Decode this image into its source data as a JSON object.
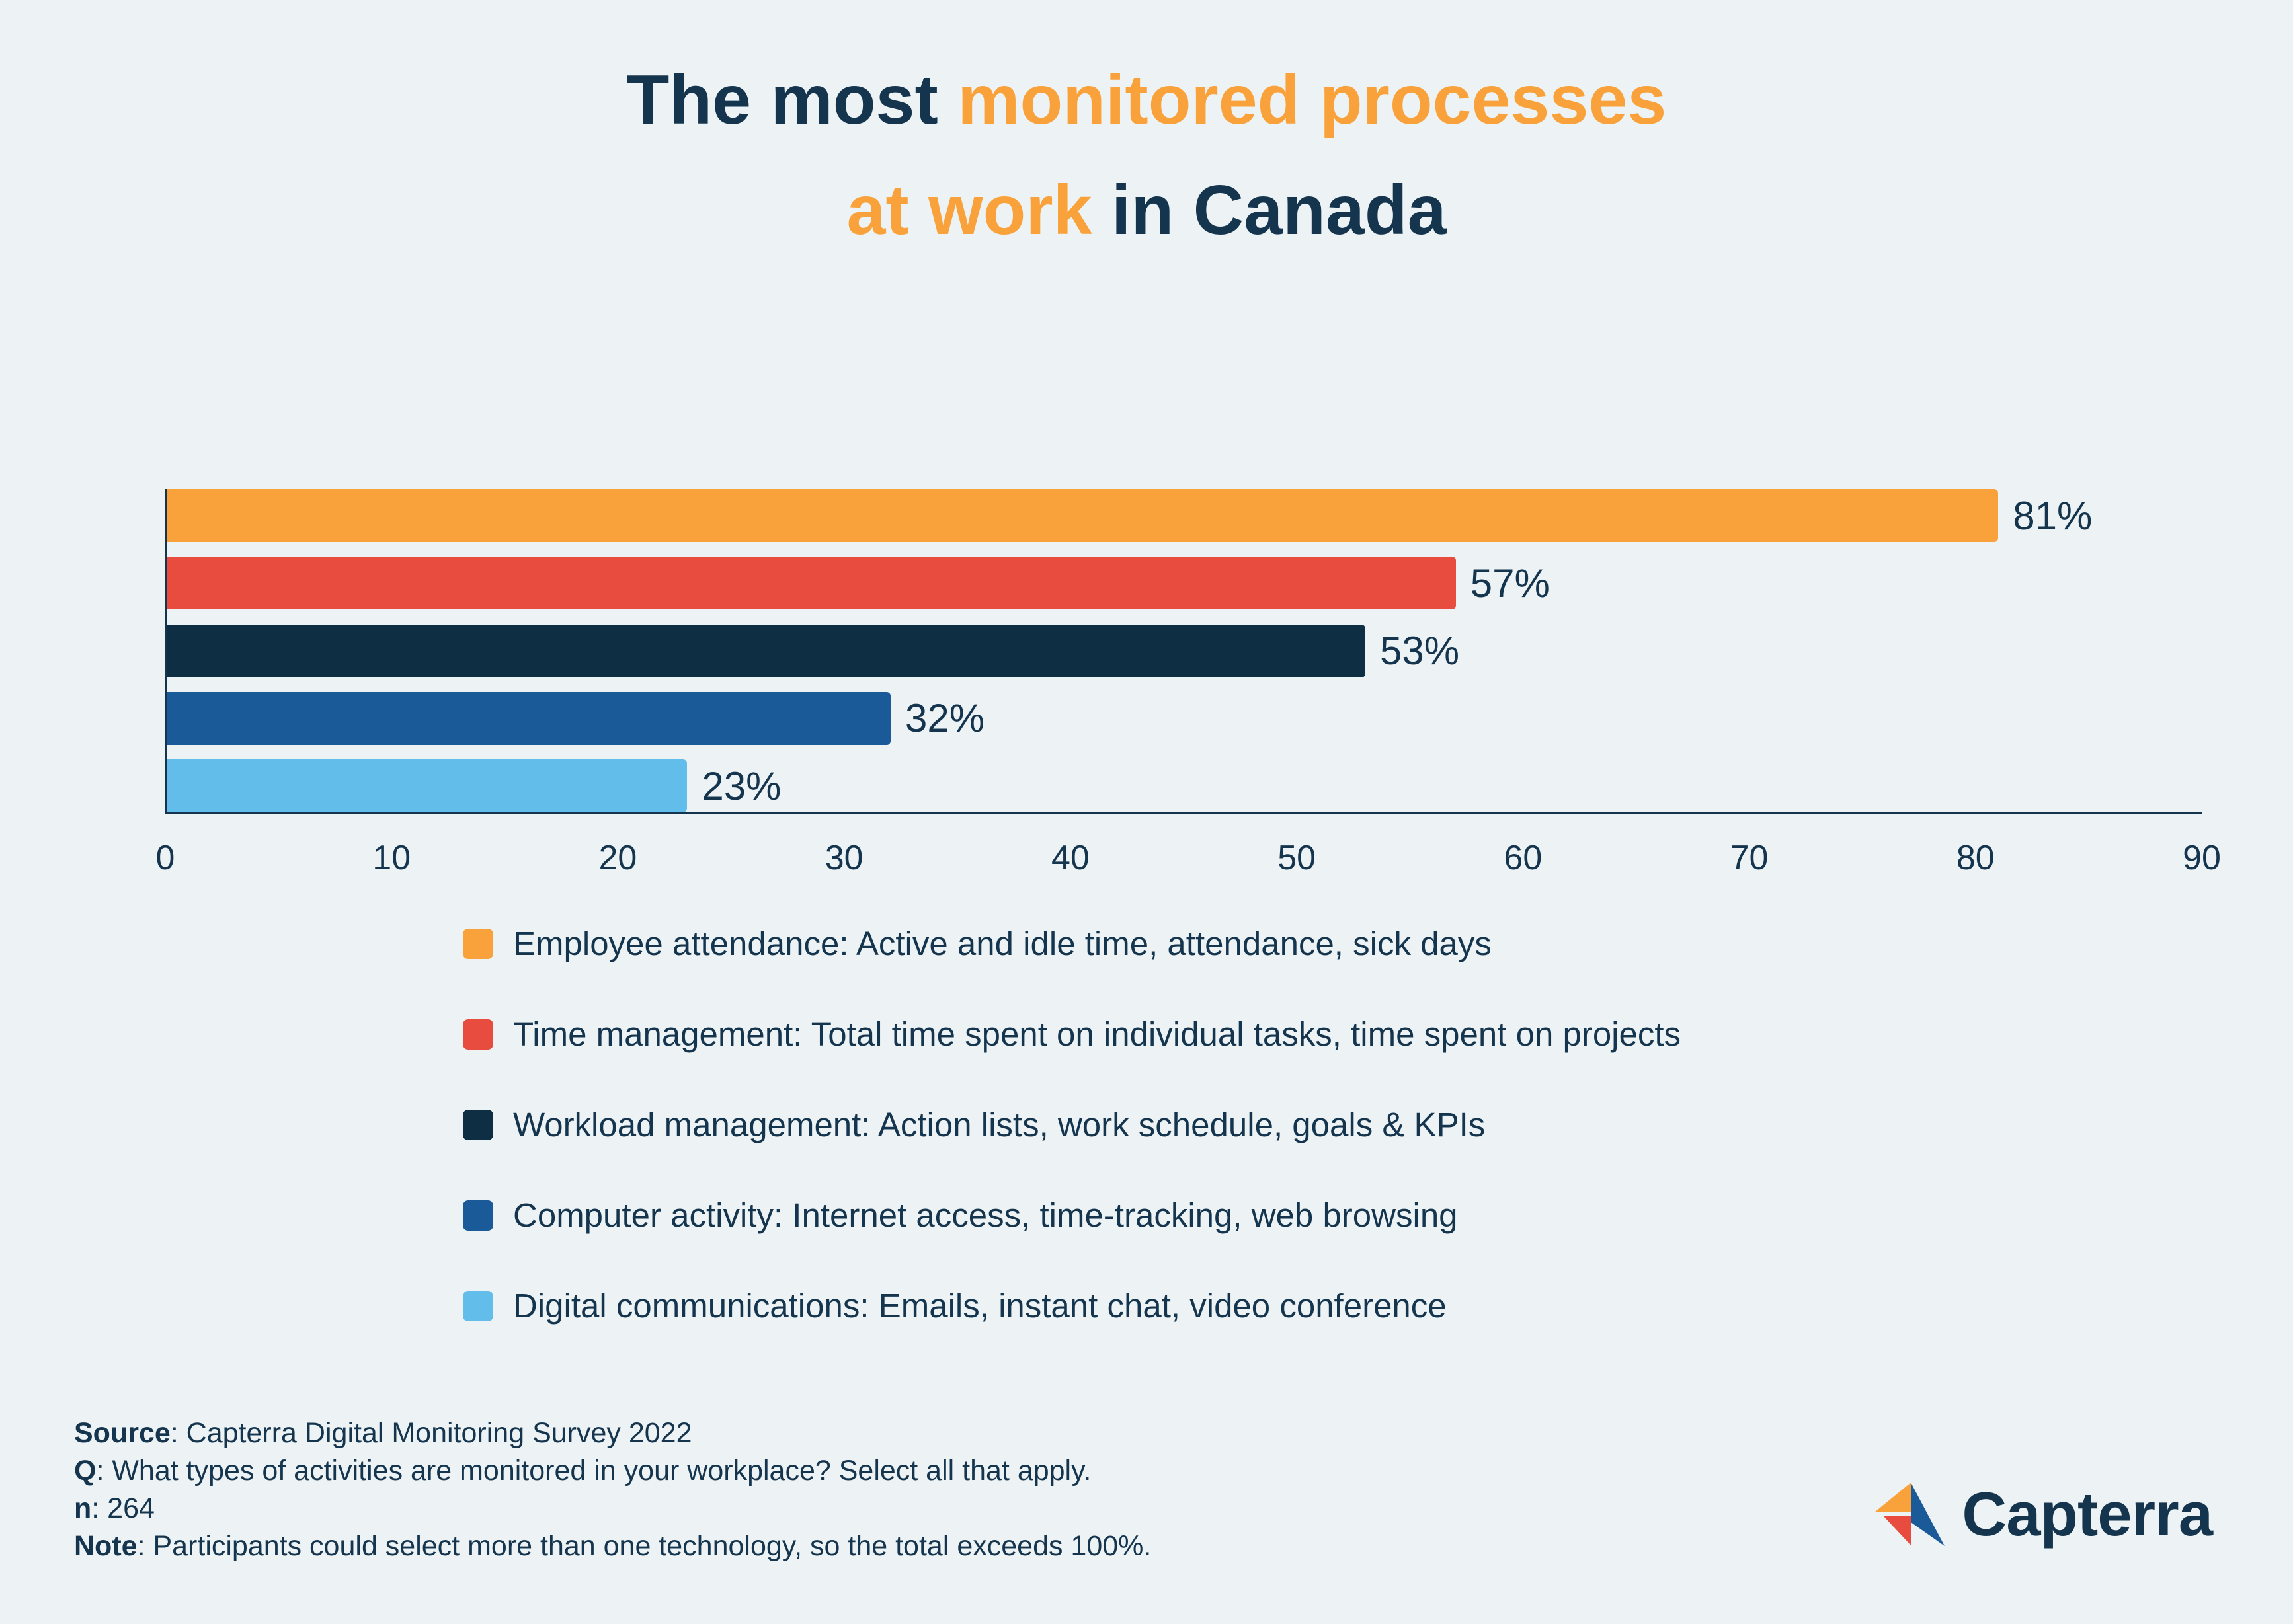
{
  "theme": {
    "background": "#EDF3F4",
    "navy": "#15354F",
    "orange": "#F9A23B",
    "red": "#E74C3F",
    "dark_navy_bar": "#0E2E43",
    "medium_blue": "#1A5A99",
    "light_blue": "#63BDEA"
  },
  "title": {
    "part1": "The most",
    "part2": "monitored processes",
    "part3": "at work",
    "part4": "in Canada"
  },
  "chart_data": {
    "type": "bar",
    "orientation": "horizontal",
    "title": "The most monitored processes at work in Canada",
    "categories": [
      "Employee attendance",
      "Time management",
      "Workload management",
      "Computer activity",
      "Digital communications"
    ],
    "values": [
      81,
      57,
      53,
      32,
      23
    ],
    "value_labels": [
      "81%",
      "57%",
      "53%",
      "32%",
      "23%"
    ],
    "colors": [
      "#F9A23B",
      "#E74C3F",
      "#0E2E43",
      "#1A5A99",
      "#63BDEA"
    ],
    "xlim": [
      0,
      90
    ],
    "x_ticks": [
      0,
      10,
      20,
      30,
      40,
      50,
      60,
      70,
      80,
      90
    ],
    "grid": false,
    "legend_position": "bottom",
    "legend": [
      {
        "color": "#F9A23B",
        "label": "Employee attendance: Active and idle time, attendance, sick days"
      },
      {
        "color": "#E74C3F",
        "label": "Time management: Total time spent on individual tasks, time spent on projects"
      },
      {
        "color": "#0E2E43",
        "label": "Workload management: Action lists, work schedule, goals & KPIs"
      },
      {
        "color": "#1A5A99",
        "label": "Computer activity: Internet access, time-tracking, web browsing"
      },
      {
        "color": "#63BDEA",
        "label": "Digital communications: Emails, instant chat, video conference"
      }
    ]
  },
  "footer": {
    "lines": [
      {
        "prefix": "Source",
        "rest": ": Capterra Digital Monitoring Survey 2022"
      },
      {
        "prefix": "Q",
        "rest": ": What types of activities are monitored in your workplace? Select all that apply."
      },
      {
        "prefix": "n",
        "rest": ": 264"
      },
      {
        "prefix": "Note",
        "rest": ": Participants could select more than one technology, so the total exceeds 100%."
      }
    ]
  },
  "logo": {
    "text": "Capterra"
  }
}
